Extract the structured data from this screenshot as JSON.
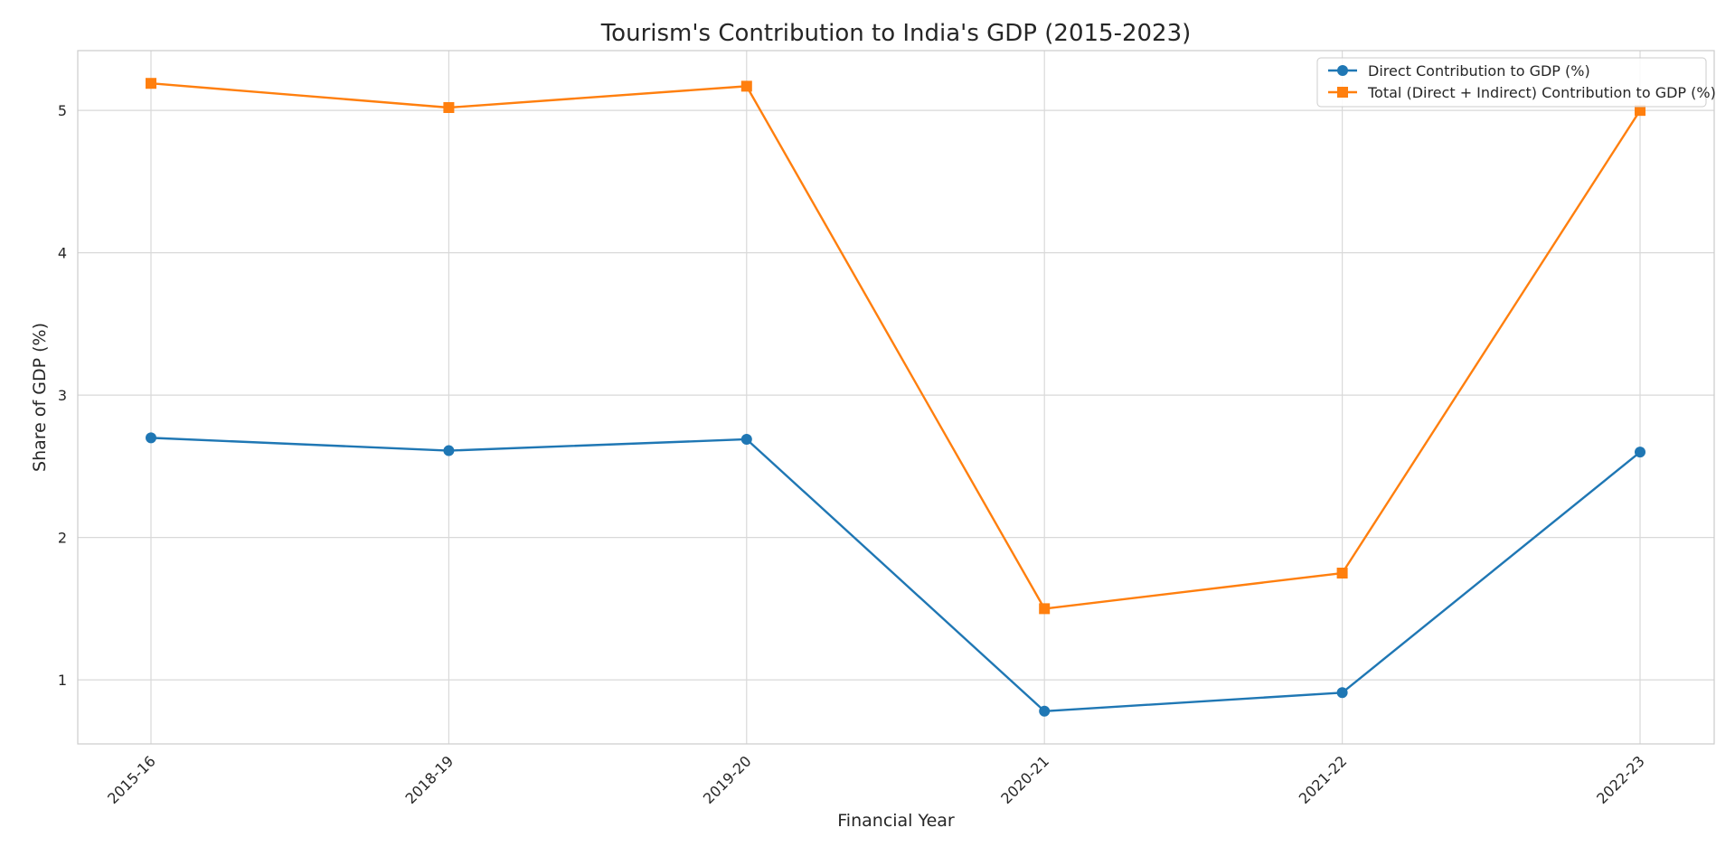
{
  "chart_data": {
    "type": "line",
    "title": "Tourism's Contribution to India's GDP (2015-2023)",
    "xlabel": "Financial Year",
    "ylabel": "Share of GDP (%)",
    "categories": [
      "2015-16",
      "2018-19",
      "2019-20",
      "2020-21",
      "2021-22",
      "2022-23"
    ],
    "ylim": [
      0.55,
      5.42
    ],
    "yticks": [
      1,
      2,
      3,
      4,
      5
    ],
    "grid": true,
    "legend_position": "top-right",
    "series": [
      {
        "name": "Direct Contribution to GDP (%)",
        "values": [
          2.7,
          2.61,
          2.69,
          0.78,
          0.91,
          2.6
        ],
        "color": "#1f77b4",
        "marker": "circle"
      },
      {
        "name": "Total (Direct + Indirect) Contribution to GDP (%)",
        "values": [
          5.19,
          5.02,
          5.17,
          1.5,
          1.75,
          5.0
        ],
        "color": "#ff7f0e",
        "marker": "square"
      }
    ]
  }
}
